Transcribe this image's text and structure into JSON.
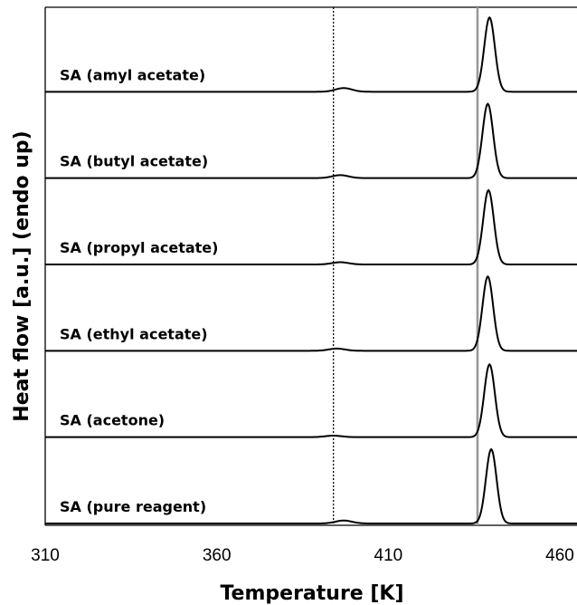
{
  "chart_data": {
    "type": "line",
    "xlabel": "Temperature [K]",
    "ylabel": "Heat flow [a.u.] (endo up)",
    "xlim": [
      310,
      465
    ],
    "xticks": [
      "310",
      "360",
      "410",
      "460"
    ],
    "grid": false,
    "reference_lines": [
      {
        "x": 394,
        "style": "dotted",
        "color": "#000000"
      },
      {
        "x": 436,
        "style": "solid",
        "color": "#999999"
      }
    ],
    "series": [
      {
        "name": "SA (amyl acetate)",
        "small_peak": {
          "x": 397,
          "height": 0.05
        },
        "main_peak": {
          "x": 439.5,
          "height": 1.0
        }
      },
      {
        "name": "SA (butyl acetate)",
        "small_peak": {
          "x": 396,
          "height": 0.04
        },
        "main_peak": {
          "x": 439.0,
          "height": 1.0
        }
      },
      {
        "name": "SA (propyl acetate)",
        "small_peak": {
          "x": 396,
          "height": 0.03
        },
        "main_peak": {
          "x": 439.2,
          "height": 1.0
        }
      },
      {
        "name": "SA (ethyl acetate)",
        "small_peak": {
          "x": 395,
          "height": 0.03
        },
        "main_peak": {
          "x": 439.0,
          "height": 1.0
        }
      },
      {
        "name": "SA (acetone)",
        "small_peak": {
          "x": 394,
          "height": 0.02
        },
        "main_peak": {
          "x": 439.5,
          "height": 0.98
        }
      },
      {
        "name": "SA (pure reagent)",
        "small_peak": {
          "x": 397,
          "height": 0.04
        },
        "main_peak": {
          "x": 440.0,
          "height": 1.0
        }
      }
    ]
  }
}
